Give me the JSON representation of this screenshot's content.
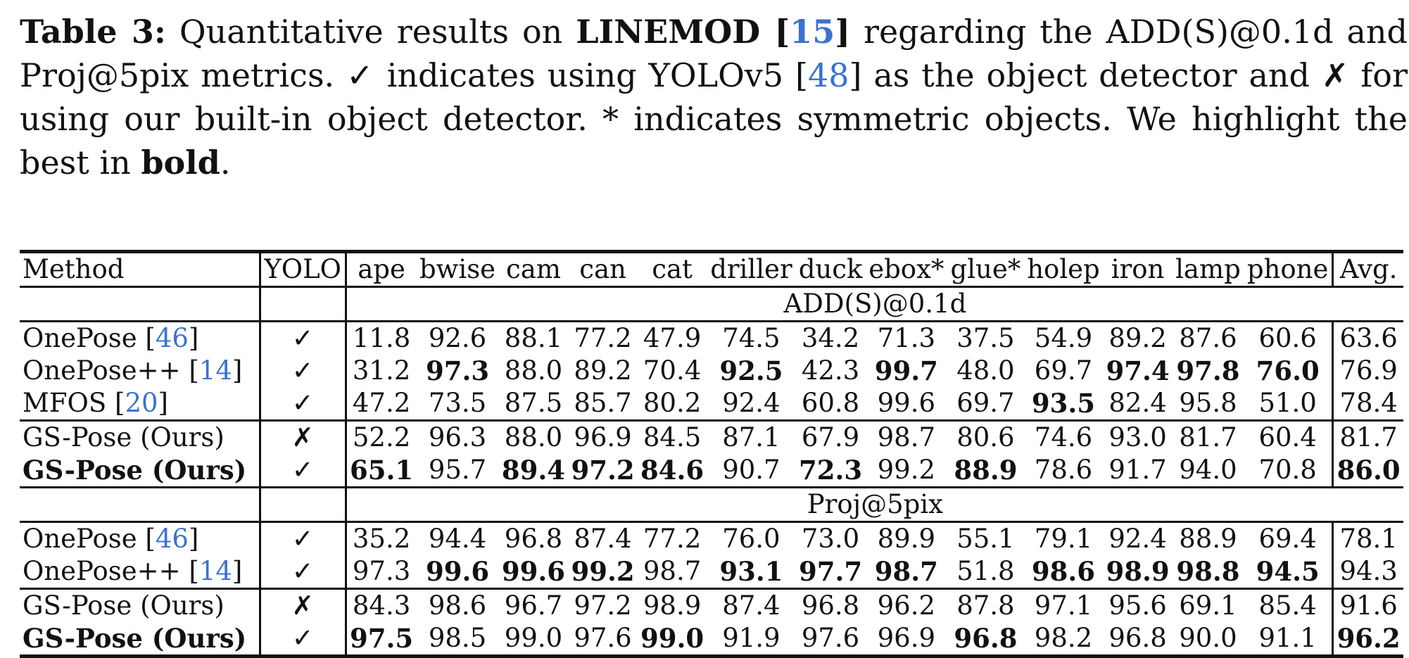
{
  "caption": {
    "label": "Table 3:",
    "t1": " Quantitative results on ",
    "dataset": "LINEMOD [",
    "ref1": "15",
    "dataset_close": "]",
    "t2": " regarding the ADD(S)@0.1d and Proj@5pix metrics. ",
    "check": "✓",
    "t3": " indicates using YOLOv5 [",
    "ref2": "48",
    "t4": "] as the object detector and ",
    "cross": "✗",
    "t5": " for using our built-in object detector. * indicates symmetric objects. We highlight the best in ",
    "bold_word": "bold",
    "t6": "."
  },
  "table": {
    "header": {
      "method": "Method",
      "yolo": "YOLO",
      "objects": [
        "ape",
        "bwise",
        "cam",
        "can",
        "cat",
        "driller",
        "duck",
        "ebox*",
        "glue*",
        "holep",
        "iron",
        "lamp",
        "phone"
      ],
      "avg": "Avg."
    },
    "sections": [
      {
        "title": "ADD(S)@0.1d",
        "rows": [
          {
            "name": "OnePose [",
            "ref": "46",
            "close": "]",
            "yolo": "✓",
            "values": [
              "11.8",
              "92.6",
              "88.1",
              "77.2",
              "47.9",
              "74.5",
              "34.2",
              "71.3",
              "37.5",
              "54.9",
              "89.2",
              "87.6",
              "60.6"
            ],
            "avg": "63.6"
          },
          {
            "name": "OnePose++ [",
            "ref": "14",
            "close": "]",
            "yolo": "✓",
            "values": [
              "31.2",
              "97.3",
              "88.0",
              "89.2",
              "70.4",
              "92.5",
              "42.3",
              "99.7",
              "48.0",
              "69.7",
              "97.4",
              "97.8",
              "76.0"
            ],
            "avg": "76.9"
          },
          {
            "name": "MFOS [",
            "ref": "20",
            "close": "]",
            "yolo": "✓",
            "values": [
              "47.2",
              "73.5",
              "87.5",
              "85.7",
              "80.2",
              "92.4",
              "60.8",
              "99.6",
              "69.7",
              "93.5",
              "82.4",
              "95.8",
              "51.0"
            ],
            "avg": "78.4"
          },
          {
            "name": "GS-Pose (Ours)",
            "yolo": "✗",
            "values": [
              "52.2",
              "96.3",
              "88.0",
              "96.9",
              "84.5",
              "87.1",
              "67.9",
              "98.7",
              "80.6",
              "74.6",
              "93.0",
              "81.7",
              "60.4"
            ],
            "avg": "81.7"
          },
          {
            "name": "GS-Pose (Ours)",
            "yolo": "✓",
            "values": [
              "65.1",
              "95.7",
              "89.4",
              "97.2",
              "84.6",
              "90.7",
              "72.3",
              "99.2",
              "88.9",
              "78.6",
              "91.7",
              "94.0",
              "70.8"
            ],
            "avg": "86.0"
          }
        ]
      },
      {
        "title": "Proj@5pix",
        "rows": [
          {
            "name": "OnePose [",
            "ref": "46",
            "close": "]",
            "yolo": "✓",
            "values": [
              "35.2",
              "94.4",
              "96.8",
              "87.4",
              "77.2",
              "76.0",
              "73.0",
              "89.9",
              "55.1",
              "79.1",
              "92.4",
              "88.9",
              "69.4"
            ],
            "avg": "78.1"
          },
          {
            "name": "OnePose++ [",
            "ref": "14",
            "close": "]",
            "yolo": "✓",
            "values": [
              "97.3",
              "99.6",
              "99.6",
              "99.2",
              "98.7",
              "93.1",
              "97.7",
              "98.7",
              "51.8",
              "98.6",
              "98.9",
              "98.8",
              "94.5"
            ],
            "avg": "94.3"
          },
          {
            "name": "GS-Pose (Ours)",
            "yolo": "✗",
            "values": [
              "84.3",
              "98.6",
              "96.7",
              "97.2",
              "98.9",
              "87.4",
              "96.8",
              "96.2",
              "87.8",
              "97.1",
              "95.6",
              "69.1",
              "85.4"
            ],
            "avg": "91.6"
          },
          {
            "name": "GS-Pose (Ours)",
            "yolo": "✓",
            "values": [
              "97.5",
              "98.5",
              "99.0",
              "97.6",
              "99.0",
              "91.9",
              "97.6",
              "96.9",
              "96.8",
              "98.2",
              "96.8",
              "90.0",
              "91.1"
            ],
            "avg": "96.2"
          }
        ]
      }
    ]
  }
}
